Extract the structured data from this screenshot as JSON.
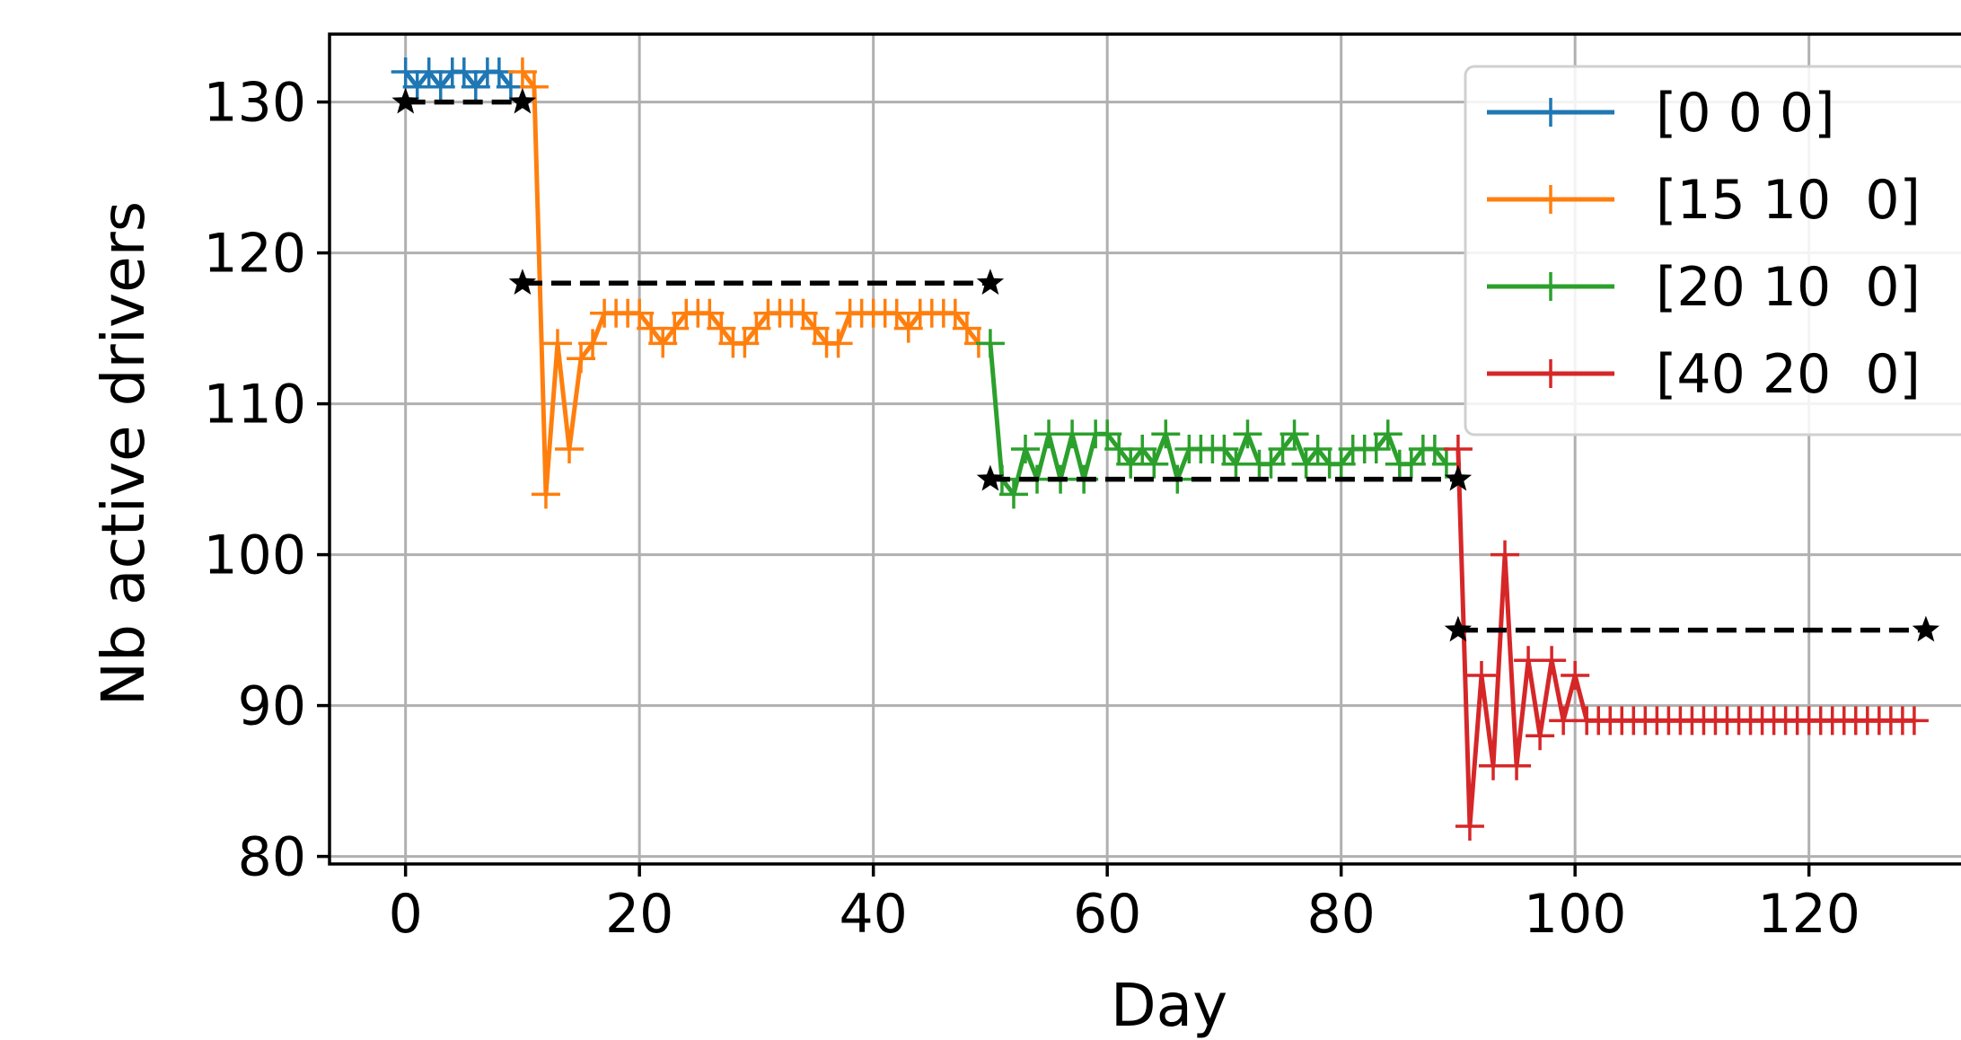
{
  "chart_data": {
    "type": "line",
    "title": "",
    "xlabel": "Day",
    "ylabel": "Nb active drivers",
    "xlim": [
      -6.5,
      133
    ],
    "ylim": [
      79.5,
      134.5
    ],
    "x_ticks": [
      0,
      20,
      40,
      60,
      80,
      100,
      120
    ],
    "y_ticks": [
      80,
      90,
      100,
      110,
      120,
      130
    ],
    "grid": true,
    "legend_position": "top-right",
    "colors": {
      "series": [
        "#1f77b4",
        "#ff7f0e",
        "#2ca02c",
        "#d62728"
      ],
      "target": "#000000",
      "grid": "#b0b0b0"
    },
    "series": [
      {
        "name": "[0 0 0]",
        "x": [
          0,
          1,
          2,
          3,
          4,
          5,
          6,
          7,
          8,
          9
        ],
        "y": [
          132,
          131,
          132,
          131,
          132,
          132,
          131,
          132,
          132,
          131
        ]
      },
      {
        "name": "[15 10  0]",
        "x": [
          10,
          11,
          12,
          13,
          14,
          15,
          16,
          17,
          18,
          19,
          20,
          21,
          22,
          23,
          24,
          25,
          26,
          27,
          28,
          29,
          30,
          31,
          32,
          33,
          34,
          35,
          36,
          37,
          38,
          39,
          40,
          41,
          42,
          43,
          44,
          45,
          46,
          47,
          48,
          49
        ],
        "y": [
          132,
          131,
          104,
          114,
          107,
          113,
          114,
          116,
          116,
          116,
          116,
          115,
          114,
          115,
          116,
          116,
          116,
          115,
          114,
          114,
          115,
          116,
          116,
          116,
          116,
          115,
          114,
          114,
          116,
          116,
          116,
          116,
          116,
          115,
          116,
          116,
          116,
          116,
          115,
          114
        ]
      },
      {
        "name": "[20 10  0]",
        "x": [
          50,
          51,
          52,
          53,
          54,
          55,
          56,
          57,
          58,
          59,
          60,
          61,
          62,
          63,
          64,
          65,
          66,
          67,
          68,
          69,
          70,
          71,
          72,
          73,
          74,
          75,
          76,
          77,
          78,
          79,
          80,
          81,
          82,
          83,
          84,
          85,
          86,
          87,
          88,
          89
        ],
        "y": [
          114,
          105,
          104,
          107,
          105,
          108,
          105,
          108,
          105,
          108,
          108,
          107,
          106,
          107,
          106,
          108,
          105,
          107,
          107,
          107,
          107,
          106,
          108,
          106,
          106,
          107,
          108,
          106,
          107,
          106,
          106,
          107,
          107,
          107,
          108,
          106,
          106,
          107,
          107,
          106
        ]
      },
      {
        "name": "[40 20  0]",
        "x": [
          90,
          91,
          92,
          93,
          94,
          95,
          96,
          97,
          98,
          99,
          100,
          101,
          102,
          103,
          104,
          105,
          106,
          107,
          108,
          109,
          110,
          111,
          112,
          113,
          114,
          115,
          116,
          117,
          118,
          119,
          120,
          121,
          122,
          123,
          124,
          125,
          126,
          127,
          128,
          129
        ],
        "y": [
          107,
          82,
          92,
          86,
          100,
          86,
          93,
          88,
          93,
          89,
          92,
          89,
          89,
          89,
          89,
          89,
          89,
          89,
          89,
          89,
          89,
          89,
          89,
          89,
          89,
          89,
          89,
          89,
          89,
          89,
          89,
          89,
          89,
          89,
          89,
          89,
          89,
          89,
          89,
          89
        ]
      }
    ],
    "target_segments": [
      {
        "x": [
          0,
          10
        ],
        "y": [
          130,
          130
        ]
      },
      {
        "x": [
          10,
          50
        ],
        "y": [
          118,
          118
        ]
      },
      {
        "x": [
          50,
          90
        ],
        "y": [
          105,
          105
        ]
      },
      {
        "x": [
          90,
          130
        ],
        "y": [
          95,
          95
        ]
      }
    ]
  }
}
